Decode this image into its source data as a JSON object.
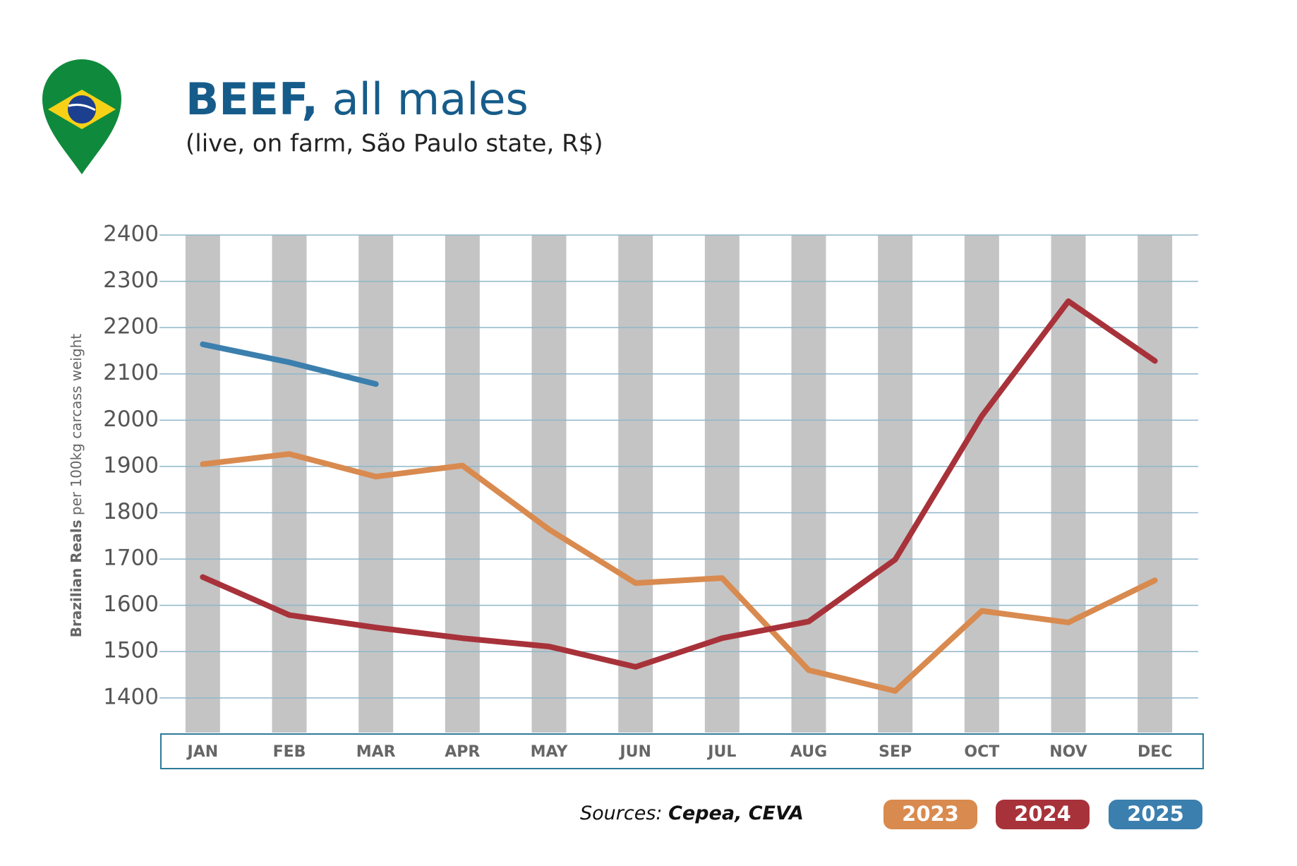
{
  "chart_data": {
    "type": "line",
    "title_bold": "BEEF,",
    "title_rest": "all males",
    "subtitle": "(live, on farm, São Paulo state, R$)",
    "y_label_bold": "Brazilian Reals",
    "y_label_rest": "per 100kg carcass weight",
    "sources_label": "Sources:",
    "sources": "Cepea, CEVA",
    "categories": [
      "JAN",
      "FEB",
      "MAR",
      "APR",
      "MAY",
      "JUN",
      "JUL",
      "AUG",
      "SEP",
      "OCT",
      "NOV",
      "DEC"
    ],
    "series": [
      {
        "name": "2023",
        "color": "#d98a4f",
        "values": [
          1905,
          1927,
          1878,
          1902,
          1764,
          1648,
          1659,
          1460,
          1415,
          1588,
          1563,
          1654
        ]
      },
      {
        "name": "2024",
        "color": "#a8323a",
        "values": [
          1661,
          1579,
          1552,
          1529,
          1511,
          1467,
          1529,
          1565,
          1699,
          2009,
          2257,
          2128
        ]
      },
      {
        "name": "2025",
        "color": "#3b7fae",
        "values": [
          2164,
          2125,
          2078,
          null,
          null,
          null,
          null,
          null,
          null,
          null,
          null,
          null
        ]
      }
    ],
    "ylim": [
      1325,
      2400
    ],
    "yticks": [
      1400,
      1500,
      1600,
      1700,
      1800,
      1900,
      2000,
      2100,
      2200,
      2300,
      2400
    ],
    "grid": true
  }
}
